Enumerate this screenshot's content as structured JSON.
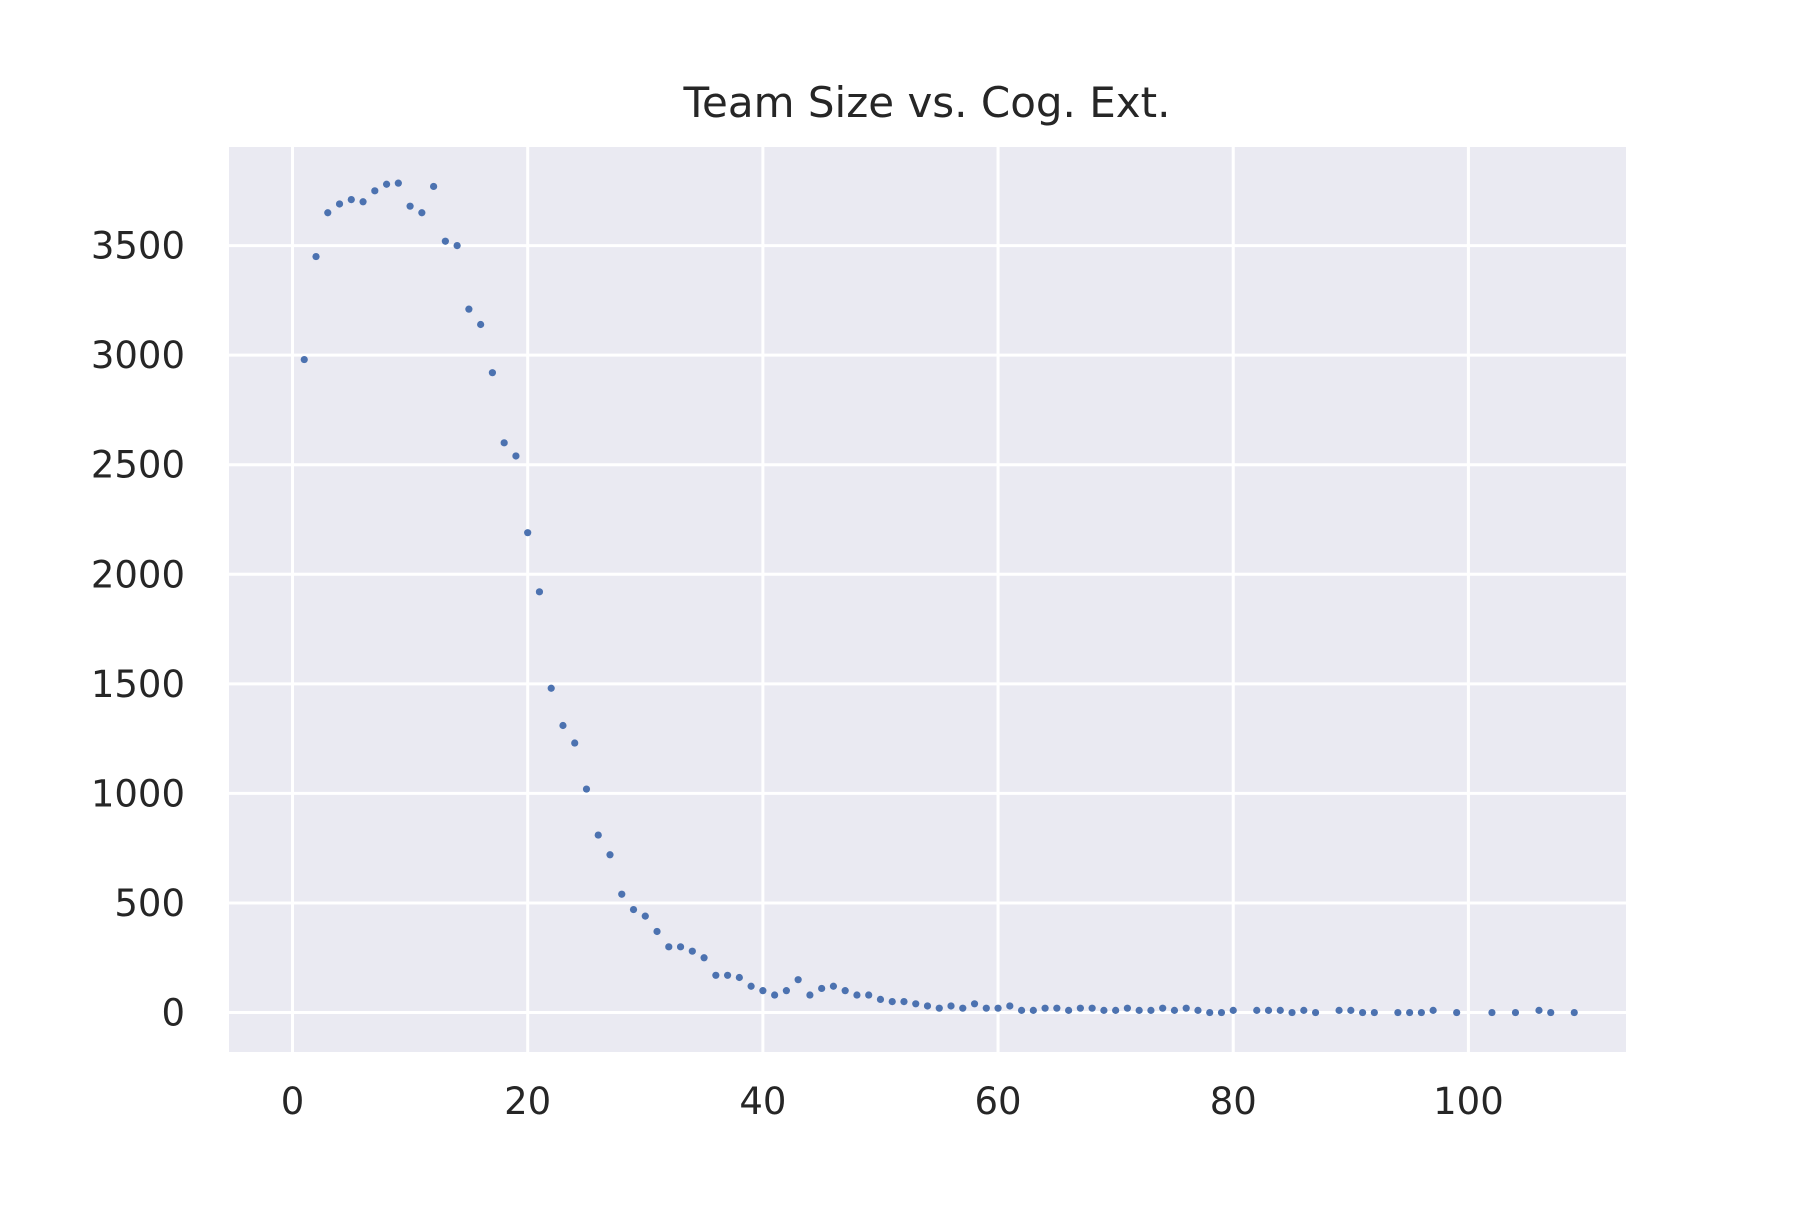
{
  "chart_data": {
    "type": "scatter",
    "title": "Team Size vs. Cog. Ext.",
    "xlabel": "",
    "ylabel": "",
    "xlim": [
      -5.4,
      113.4
    ],
    "ylim": [
      -180,
      3950
    ],
    "x_ticks": [
      0,
      20,
      40,
      60,
      80,
      100
    ],
    "y_ticks": [
      0,
      500,
      1000,
      1500,
      2000,
      2500,
      3000,
      3500
    ],
    "x_tick_labels": [
      "0",
      "20",
      "40",
      "60",
      "80",
      "100"
    ],
    "y_tick_labels": [
      "0",
      "500",
      "1000",
      "1500",
      "2000",
      "2500",
      "3000",
      "3500"
    ],
    "grid": true,
    "legend": "none",
    "colors": {
      "marker": "#4c72b0",
      "plot_bg": "#eaeaf2",
      "grid": "#ffffff",
      "text": "#262626"
    },
    "x": [
      1,
      2,
      3,
      4,
      5,
      6,
      7,
      8,
      9,
      10,
      11,
      12,
      13,
      14,
      15,
      16,
      17,
      18,
      19,
      20,
      21,
      22,
      23,
      24,
      25,
      26,
      27,
      28,
      29,
      30,
      31,
      32,
      33,
      34,
      35,
      36,
      37,
      38,
      39,
      40,
      41,
      42,
      43,
      44,
      45,
      46,
      47,
      48,
      49,
      50,
      51,
      52,
      53,
      54,
      55,
      56,
      57,
      58,
      59,
      60,
      61,
      62,
      63,
      64,
      65,
      66,
      67,
      68,
      69,
      70,
      71,
      72,
      73,
      74,
      75,
      76,
      77,
      78,
      79,
      80,
      82,
      83,
      84,
      85,
      86,
      87,
      89,
      90,
      91,
      92,
      94,
      95,
      96,
      97,
      99,
      102,
      104,
      106,
      107,
      109
    ],
    "y": [
      2980,
      3450,
      3650,
      3690,
      3710,
      3700,
      3750,
      3780,
      3785,
      3680,
      3650,
      3770,
      3520,
      3500,
      3210,
      3140,
      2920,
      2600,
      2540,
      2190,
      1920,
      1480,
      1310,
      1230,
      1020,
      810,
      720,
      540,
      470,
      440,
      370,
      300,
      300,
      280,
      250,
      170,
      170,
      160,
      120,
      100,
      80,
      100,
      150,
      80,
      110,
      120,
      100,
      80,
      80,
      60,
      50,
      50,
      40,
      30,
      20,
      30,
      20,
      40,
      20,
      20,
      30,
      10,
      10,
      20,
      20,
      10,
      20,
      20,
      10,
      10,
      20,
      10,
      10,
      20,
      10,
      20,
      10,
      0,
      0,
      10,
      10,
      10,
      10,
      0,
      10,
      0,
      10,
      10,
      0,
      0,
      0,
      0,
      0,
      10,
      0,
      0,
      0,
      10,
      0,
      0
    ]
  }
}
